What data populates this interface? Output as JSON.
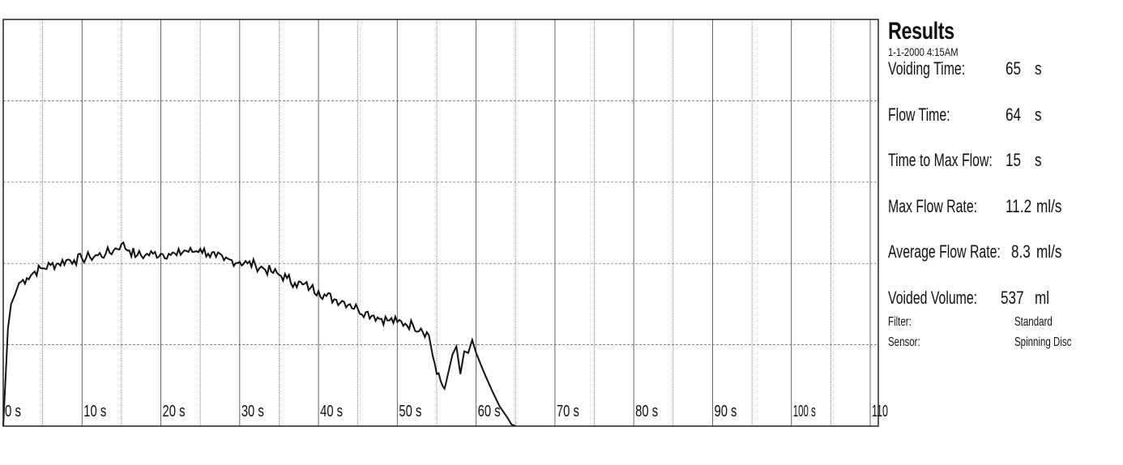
{
  "chart_data": {
    "type": "line",
    "xlabel": "",
    "ylabel": "",
    "xlim": [
      0,
      110
    ],
    "x_ticks": [
      0,
      10,
      20,
      30,
      40,
      50,
      60,
      70,
      80,
      90,
      100,
      110
    ],
    "x_tick_labels": [
      "0 s",
      "10 s",
      "20 s",
      "30 s",
      "40 s",
      "50 s",
      "60 s",
      "70 s",
      "80 s",
      "90 s",
      "100 s",
      "110"
    ],
    "ylim": [
      0,
      25
    ],
    "grid": true,
    "series": [
      {
        "x": [
          0,
          0.3,
          0.6,
          1,
          1.5,
          2,
          3,
          4,
          5,
          6,
          7,
          8,
          9,
          10,
          11,
          12,
          13,
          14,
          15,
          16,
          17,
          18,
          19,
          20,
          21,
          22,
          23,
          24,
          25,
          26,
          27,
          28,
          29,
          30,
          31,
          32,
          33,
          34,
          35,
          36,
          37,
          38,
          39,
          40,
          41,
          42,
          43,
          44,
          45,
          46,
          47,
          48,
          49,
          50,
          51,
          52,
          53,
          54,
          55,
          56,
          57,
          57.5,
          58,
          58.5,
          59,
          59.5,
          60,
          61,
          62,
          63,
          64,
          64.5,
          65
        ],
        "y": [
          0,
          3,
          6,
          7.5,
          8.1,
          8.8,
          9.1,
          9.5,
          9.7,
          9.9,
          10.0,
          10.2,
          10.2,
          10.3,
          10.4,
          10.5,
          10.6,
          10.8,
          11.2,
          10.8,
          10.5,
          10.5,
          10.6,
          10.6,
          10.6,
          10.5,
          10.8,
          10.7,
          10.9,
          10.6,
          10.4,
          10.2,
          10.2,
          10.1,
          10.0,
          9.9,
          9.7,
          9.5,
          9.3,
          9.1,
          8.8,
          8.7,
          8.5,
          8.3,
          8.0,
          7.8,
          7.7,
          7.5,
          7.2,
          7.0,
          6.8,
          6.6,
          6.5,
          6.4,
          6.3,
          6.2,
          6.0,
          5.6,
          3.2,
          2.3,
          4.4,
          4.9,
          3.2,
          4.6,
          4.5,
          5.3,
          4.5,
          3.3,
          2.2,
          1.2,
          0.5,
          0.1,
          0
        ]
      }
    ]
  },
  "results": {
    "title": "Results",
    "datetime": "1-1-2000  4:15AM",
    "rows": [
      {
        "label": "Voiding Time:",
        "value": "65",
        "unit": "s"
      },
      {
        "label": "Flow Time:",
        "value": "64",
        "unit": "s"
      },
      {
        "label": "Time to Max Flow:",
        "value": "15",
        "unit": "s"
      },
      {
        "label": "Max Flow Rate:",
        "value": "11.2",
        "unit": "ml/s"
      },
      {
        "label": "Average Flow Rate:",
        "value": "8.3",
        "unit": "ml/s"
      },
      {
        "label": "Voided Volume:",
        "value": "537",
        "unit": "ml"
      }
    ],
    "filter_label": "Filter:",
    "filter_value": "Standard",
    "sensor_label": "Sensor:",
    "sensor_value": "Spinning Disc"
  }
}
